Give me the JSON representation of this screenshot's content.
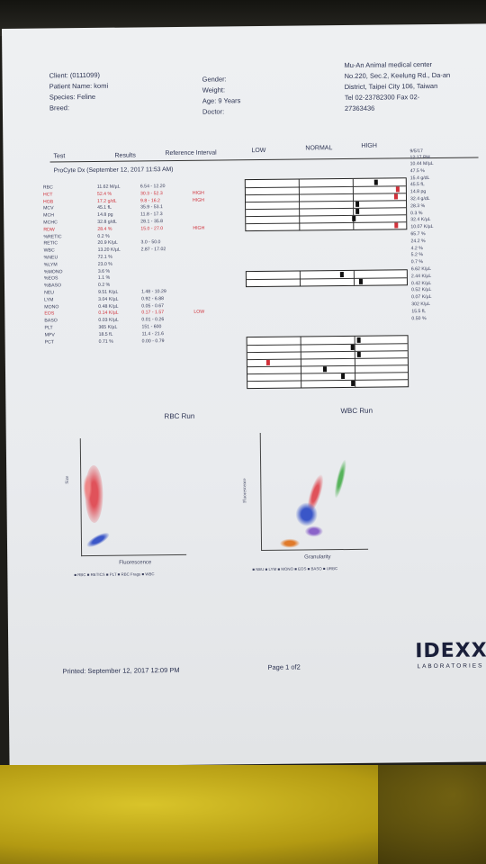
{
  "header": {
    "client": "Client: (0111099)",
    "patient": "Patient Name: komi",
    "species": "Species: Feline",
    "breed": "Breed:",
    "gender": "Gender:",
    "weight": "Weight:",
    "age": "Age: 9 Years",
    "doctor": "Doctor:",
    "clinic": [
      "Mu-An Animal medical center",
      "No.220, Sec.2, Keelung Rd., Da-an",
      "District, Taipei City 106, Taiwan",
      "Tel 02-23782300  Fax 02-",
      "27363436"
    ]
  },
  "columns": {
    "test": "Test",
    "results": "Results",
    "ref": "Reference Interval",
    "low": "LOW",
    "normal": "NORMAL",
    "high": "HIGH"
  },
  "run_title": "ProCyte Dx (September 12, 2017 11:53 AM)",
  "prev_date": [
    "9/5/17",
    "12:17 PM"
  ],
  "rows": [
    {
      "test": "RBC",
      "result": "11.62 M/µL",
      "ref": "6.54 - 12.20",
      "flag": "",
      "prev": "10.44 M/µL",
      "red": false
    },
    {
      "test": "HCT",
      "result": "52.4 %",
      "ref": "30.3 - 52.3",
      "flag": "HIGH",
      "prev": "47.5 %",
      "red": true
    },
    {
      "test": "HGB",
      "result": "17.2 g/dL",
      "ref": "9.8 - 16.2",
      "flag": "HIGH",
      "prev": "15.4 g/dL",
      "red": true
    },
    {
      "test": "MCV",
      "result": "45.1 fL",
      "ref": "35.9 - 53.1",
      "flag": "",
      "prev": "45.5 fL",
      "red": false
    },
    {
      "test": "MCH",
      "result": "14.8 pg",
      "ref": "11.8 - 17.3",
      "flag": "",
      "prev": "14.8 pg",
      "red": false
    },
    {
      "test": "MCHC",
      "result": "32.8 g/dL",
      "ref": "28.1 - 35.8",
      "flag": "",
      "prev": "32.4 g/dL",
      "red": false
    },
    {
      "test": "RDW",
      "result": "28.4 %",
      "ref": "15.0 - 27.0",
      "flag": "HIGH",
      "prev": "28.3 %",
      "red": true
    },
    {
      "test": "%RETIC",
      "result": "0.2 %",
      "ref": "",
      "flag": "",
      "prev": "0.3 %",
      "red": false
    },
    {
      "test": "RETIC",
      "result": "20.9 K/µL",
      "ref": "3.0 - 50.0",
      "flag": "",
      "prev": "32.4 K/µL",
      "red": false
    },
    {
      "test": "WBC",
      "result": "13.20 K/µL",
      "ref": "2.87 - 17.02",
      "flag": "",
      "prev": "10.07 K/µL",
      "red": false
    },
    {
      "test": "%NEU",
      "result": "72.1 %",
      "ref": "",
      "flag": "",
      "prev": "65.7 %",
      "red": false
    },
    {
      "test": "%LYM",
      "result": "23.0 %",
      "ref": "",
      "flag": "",
      "prev": "24.2 %",
      "red": false
    },
    {
      "test": "%MONO",
      "result": "3.6 %",
      "ref": "",
      "flag": "",
      "prev": "4.2 %",
      "red": false
    },
    {
      "test": "%EOS",
      "result": "1.1 %",
      "ref": "",
      "flag": "",
      "prev": "5.2 %",
      "red": false
    },
    {
      "test": "%BASO",
      "result": "0.2 %",
      "ref": "",
      "flag": "",
      "prev": "0.7 %",
      "red": false
    },
    {
      "test": "NEU",
      "result": "9.51 K/µL",
      "ref": "1.48 - 10.29",
      "flag": "",
      "prev": "6.62 K/µL",
      "red": false
    },
    {
      "test": "LYM",
      "result": "3.04 K/µL",
      "ref": "0.92 - 6.88",
      "flag": "",
      "prev": "2.44 K/µL",
      "red": false
    },
    {
      "test": "MONO",
      "result": "0.48 K/µL",
      "ref": "0.05 - 0.67",
      "flag": "",
      "prev": "0.42 K/µL",
      "red": false
    },
    {
      "test": "EOS",
      "result": "0.14 K/µL",
      "ref": "0.17 - 1.57",
      "flag": "LOW",
      "prev": "0.52 K/µL",
      "red": true
    },
    {
      "test": "BASO",
      "result": "0.03 K/µL",
      "ref": "0.01 - 0.26",
      "flag": "",
      "prev": "0.07 K/µL",
      "red": false
    },
    {
      "test": "PLT",
      "result": "365 K/µL",
      "ref": "151 - 600",
      "flag": "",
      "prev": "302 K/µL",
      "red": false
    },
    {
      "test": "MPV",
      "result": "18.5 fL",
      "ref": "11.4 - 21.6",
      "flag": "",
      "prev": "15.5 fL",
      "red": false
    },
    {
      "test": "PCT",
      "result": "0.71 %",
      "ref": "0.00 - 0.79",
      "flag": "",
      "prev": "0.50 %",
      "red": false
    }
  ],
  "range_markers": {
    "rbc_group": [
      0.82,
      0.96,
      0.95,
      0.7,
      0.7,
      0.68,
      0.95
    ],
    "rbc_group_red": [
      false,
      true,
      true,
      false,
      false,
      false,
      true
    ],
    "retic_group": [
      0.6,
      0.72
    ],
    "wbc_group": [
      0.7,
      0.66,
      0.7,
      0.12,
      0.48,
      0.6,
      0.66
    ],
    "wbc_group_red": [
      false,
      false,
      false,
      true,
      false,
      false,
      false
    ]
  },
  "rbc_run": {
    "title": "RBC Run",
    "xlabel": "Fluorescence",
    "ylabel": "Size",
    "legend": "■ RBC  ■ RETICS  ■ PLT  ■ RBC Frags  ■ WBC"
  },
  "wbc_run": {
    "title": "WBC Run",
    "xlabel": "Granularity",
    "ylabel": "Fluorescence",
    "legend": "■ NEU  ■ LYM  ■ MONO  ■ EOS  ■ BASO  ■ URBC"
  },
  "footer": {
    "printed": "Printed: September 12, 2017 12:09 PM",
    "page": "Page 1 of2",
    "logo": "IDEXX",
    "logo_sub": "LABORATORIES"
  },
  "colors": {
    "ink": "#2c3352",
    "red": "#d0313a",
    "blue": "#3a56c8",
    "green": "#56b35a",
    "orange": "#e07a2a",
    "purple": "#8a63c9"
  }
}
